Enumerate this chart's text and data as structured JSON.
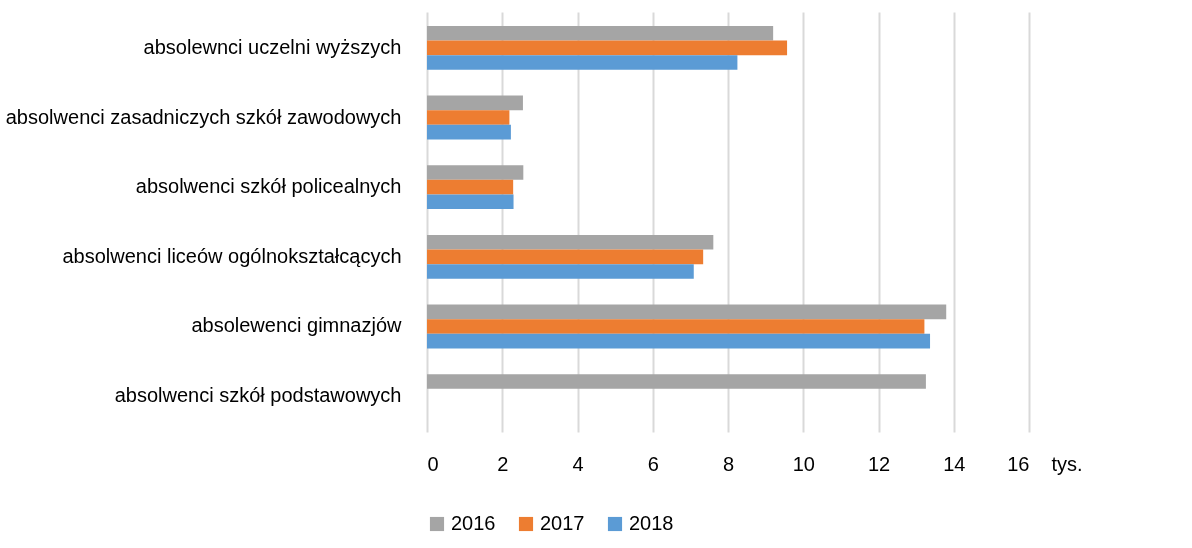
{
  "chart_data": {
    "type": "bar",
    "orientation": "horizontal",
    "xlabel": "tys.",
    "categories": [
      "absolewnci uczelni wyższych",
      "absolwenci zasadniczych szkół zawodowych",
      "absolwenci szkół policealnych",
      "absolwenci liceów ogólnokształcących",
      "absolewenci gimnazjów",
      "absolwenci szkół podstawowych"
    ],
    "series": [
      {
        "name": "2016",
        "color": "#a5a5a5",
        "values": [
          9.2,
          2.55,
          2.56,
          7.61,
          13.8,
          13.26
        ]
      },
      {
        "name": "2017",
        "color": "#ed7d31",
        "values": [
          9.57,
          2.19,
          2.29,
          7.34,
          13.22,
          null
        ]
      },
      {
        "name": "2018",
        "color": "#5b9bd5",
        "values": [
          8.25,
          2.23,
          2.3,
          7.09,
          13.37,
          null
        ]
      }
    ],
    "xlim": [
      0,
      16
    ],
    "xticks": [
      0,
      2,
      4,
      6,
      8,
      10,
      12,
      14,
      16
    ],
    "grid": "x",
    "legend": "bottom"
  }
}
